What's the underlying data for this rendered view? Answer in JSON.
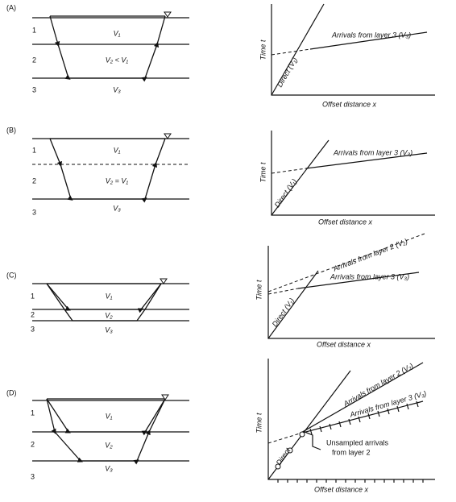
{
  "panels": [
    {
      "label": "(A)",
      "layers": [
        "1",
        "2",
        "3"
      ],
      "velocities": [
        "V₁",
        "V₂ < V₁",
        "V₃"
      ],
      "graph": {
        "y_axis": "Time t",
        "x_axis": "Offset distance x",
        "annotations": [
          "Direct (V₁)",
          "Arrivals from layer 3 (V₃)"
        ]
      }
    },
    {
      "label": "(B)",
      "layers": [
        "1",
        "2",
        "3"
      ],
      "velocities": [
        "V₁",
        "V₂ = V₁",
        "V₃"
      ],
      "graph": {
        "y_axis": "Time t",
        "x_axis": "Offset distance x",
        "annotations": [
          "Direct (V₁)",
          "Arrivals from layer 3 (V₃)"
        ]
      }
    },
    {
      "label": "(C)",
      "layers": [
        "1",
        "2",
        "3"
      ],
      "velocities": [
        "V₁",
        "V₂",
        "V₃"
      ],
      "graph": {
        "y_axis": "Time t",
        "x_axis": "Offset distance x",
        "annotations": [
          "Direct (V₁)",
          "Arrivals from layer 2 (V₂)",
          "Arrivals from layer 3 (V₃)"
        ]
      }
    },
    {
      "label": "(D)",
      "layers": [
        "1",
        "2",
        "3"
      ],
      "velocities": [
        "V₁",
        "V₂",
        "V₃"
      ],
      "graph": {
        "y_axis": "Time t",
        "x_axis": "Offset distance x",
        "annotations": [
          "Direct",
          "Arrivals from layer 2 (V₂)",
          "Arrivals from layer 3 (V₃)",
          "Unsampled arrivals",
          "from layer 2"
        ]
      }
    }
  ]
}
